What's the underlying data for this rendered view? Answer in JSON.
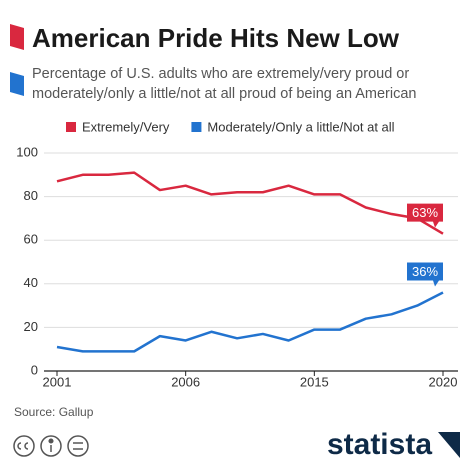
{
  "chart_data": {
    "type": "line",
    "title": "American Pride Hits New Low",
    "subtitle": [
      "Percentage of U.S. adults who are extremely/very proud or",
      "moderately/only a little/not at all proud of being an American"
    ],
    "categories": [
      "2001",
      null,
      null,
      null,
      null,
      "2006",
      null,
      null,
      null,
      null,
      "2015",
      null,
      null,
      null,
      null,
      "2020"
    ],
    "series": [
      {
        "name": "Extremely/Very",
        "color": "#d9283f",
        "values": [
          87,
          90,
          90,
          91,
          83,
          85,
          81,
          82,
          82,
          85,
          81,
          81,
          75,
          72,
          70,
          63
        ],
        "value_labels": [
          null,
          null,
          null,
          null,
          null,
          null,
          null,
          null,
          null,
          null,
          null,
          null,
          null,
          null,
          null,
          "63%"
        ]
      },
      {
        "name": "Moderately/Only a little/Not at all",
        "color": "#2273cf",
        "values": [
          11,
          9,
          9,
          9,
          16,
          14,
          18,
          15,
          17,
          14,
          19,
          19,
          24,
          26,
          30,
          36
        ],
        "value_labels": [
          null,
          null,
          null,
          null,
          null,
          null,
          null,
          null,
          null,
          null,
          null,
          null,
          null,
          null,
          null,
          "36%"
        ]
      }
    ],
    "ylim": [
      0,
      100
    ],
    "yticks": [
      0,
      20,
      40,
      60,
      80,
      100
    ],
    "grid": true,
    "source": "Source: Gallup",
    "logo": "statista"
  }
}
